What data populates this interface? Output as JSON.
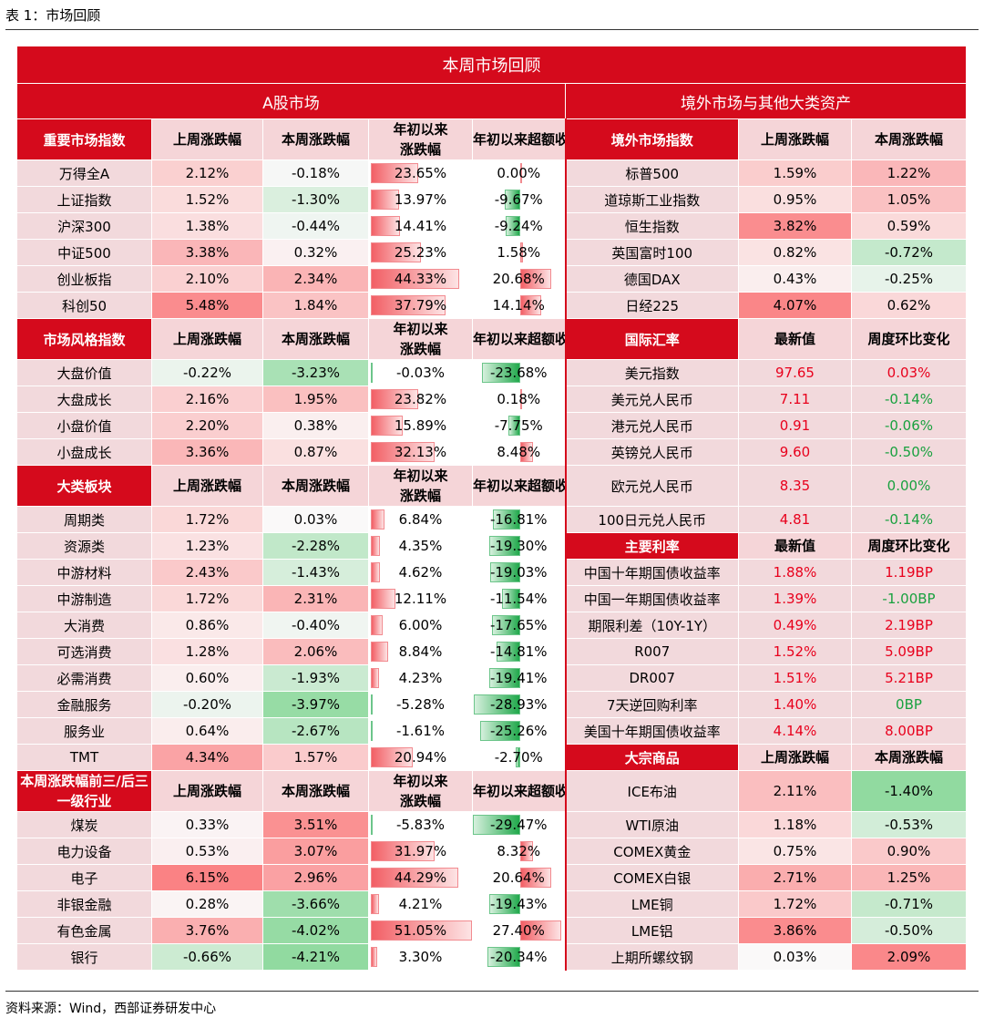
{
  "caption": "表 1：市场回顾",
  "source": "资料来源：Wind，西部证券研发中心",
  "title": "本周市场回顾",
  "left_title": "A股市场",
  "right_title": "境外市场与其他大类资产",
  "hdr": {
    "last_week": "上周涨跌幅",
    "this_week": "本周涨跌幅",
    "ytd": "年初以来涨跌幅",
    "excess": "年初以来超额收益",
    "latest": "最新值",
    "wow": "周度环比变化"
  },
  "left_sections": [
    {
      "name": "重要市场指数",
      "rows": [
        {
          "label": "万得全A",
          "last": "2.12%",
          "this": "-0.18%",
          "ytd": "23.65%",
          "ex": "0.00%"
        },
        {
          "label": "上证指数",
          "last": "1.52%",
          "this": "-1.30%",
          "ytd": "13.97%",
          "ex": "-9.67%"
        },
        {
          "label": "沪深300",
          "last": "1.38%",
          "this": "-0.44%",
          "ytd": "14.41%",
          "ex": "-9.24%"
        },
        {
          "label": "中证500",
          "last": "3.38%",
          "this": "0.32%",
          "ytd": "25.23%",
          "ex": "1.58%"
        },
        {
          "label": "创业板指",
          "last": "2.10%",
          "this": "2.34%",
          "ytd": "44.33%",
          "ex": "20.68%"
        },
        {
          "label": "科创50",
          "last": "5.48%",
          "this": "1.84%",
          "ytd": "37.79%",
          "ex": "14.14%"
        }
      ]
    },
    {
      "name": "市场风格指数",
      "rows": [
        {
          "label": "大盘价值",
          "last": "-0.22%",
          "this": "-3.23%",
          "ytd": "-0.03%",
          "ex": "-23.68%"
        },
        {
          "label": "大盘成长",
          "last": "2.16%",
          "this": "1.95%",
          "ytd": "23.82%",
          "ex": "0.18%"
        },
        {
          "label": "小盘价值",
          "last": "2.20%",
          "this": "0.38%",
          "ytd": "15.89%",
          "ex": "-7.75%"
        },
        {
          "label": "小盘成长",
          "last": "3.36%",
          "this": "0.87%",
          "ytd": "32.13%",
          "ex": "8.48%"
        }
      ]
    },
    {
      "name": "大类板块",
      "rows": [
        {
          "label": "周期类",
          "last": "1.72%",
          "this": "0.03%",
          "ytd": "6.84%",
          "ex": "-16.81%"
        },
        {
          "label": "资源类",
          "last": "1.23%",
          "this": "-2.28%",
          "ytd": "4.35%",
          "ex": "-19.30%"
        },
        {
          "label": "中游材料",
          "last": "2.43%",
          "this": "-1.43%",
          "ytd": "4.62%",
          "ex": "-19.03%"
        },
        {
          "label": "中游制造",
          "last": "1.72%",
          "this": "2.31%",
          "ytd": "12.11%",
          "ex": "-11.54%"
        },
        {
          "label": "大消费",
          "last": "0.86%",
          "this": "-0.40%",
          "ytd": "6.00%",
          "ex": "-17.65%"
        },
        {
          "label": "可选消费",
          "last": "1.28%",
          "this": "2.06%",
          "ytd": "8.84%",
          "ex": "-14.81%"
        },
        {
          "label": "必需消费",
          "last": "0.60%",
          "this": "-1.93%",
          "ytd": "4.23%",
          "ex": "-19.41%"
        },
        {
          "label": "金融服务",
          "last": "-0.20%",
          "this": "-3.97%",
          "ytd": "-5.28%",
          "ex": "-28.93%"
        },
        {
          "label": "服务业",
          "last": "0.64%",
          "this": "-2.67%",
          "ytd": "-1.61%",
          "ex": "-25.26%"
        },
        {
          "label": "TMT",
          "last": "4.34%",
          "this": "1.57%",
          "ytd": "20.94%",
          "ex": "-2.70%"
        }
      ]
    },
    {
      "name": "本周涨跌幅前三/后三一级行业",
      "rows": [
        {
          "label": "煤炭",
          "last": "0.33%",
          "this": "3.51%",
          "ytd": "-5.83%",
          "ex": "-29.47%"
        },
        {
          "label": "电力设备",
          "last": "0.53%",
          "this": "3.07%",
          "ytd": "31.97%",
          "ex": "8.32%"
        },
        {
          "label": "电子",
          "last": "6.15%",
          "this": "2.96%",
          "ytd": "44.29%",
          "ex": "20.64%"
        },
        {
          "label": "非银金融",
          "last": "0.28%",
          "this": "-3.66%",
          "ytd": "4.21%",
          "ex": "-19.43%"
        },
        {
          "label": "有色金属",
          "last": "3.76%",
          "this": "-4.02%",
          "ytd": "51.05%",
          "ex": "27.40%"
        },
        {
          "label": "银行",
          "last": "-0.66%",
          "this": "-4.21%",
          "ytd": "3.30%",
          "ex": "-20.34%"
        }
      ]
    }
  ],
  "right_sections": [
    {
      "name": "境外市场指数",
      "h1": "上周涨跌幅",
      "h2": "本周涨跌幅",
      "kind": "pct",
      "rows": [
        {
          "label": "标普500",
          "a": "1.59%",
          "b": "1.22%"
        },
        {
          "label": "道琼斯工业指数",
          "a": "0.95%",
          "b": "1.05%"
        },
        {
          "label": "恒生指数",
          "a": "3.82%",
          "b": "0.59%"
        },
        {
          "label": "英国富时100",
          "a": "0.82%",
          "b": "-0.72%"
        },
        {
          "label": "德国DAX",
          "a": "0.43%",
          "b": "-0.25%"
        },
        {
          "label": "日经225",
          "a": "4.07%",
          "b": "0.62%"
        }
      ]
    },
    {
      "name": "国际汇率",
      "h1": "最新值",
      "h2": "周度环比变化",
      "kind": "fx",
      "rows": [
        {
          "label": "美元指数",
          "a": "97.65",
          "b": "0.03%"
        },
        {
          "label": "美元兑人民币",
          "a": "7.11",
          "b": "-0.14%"
        },
        {
          "label": "港元兑人民币",
          "a": "0.91",
          "b": "-0.06%"
        },
        {
          "label": "英镑兑人民币",
          "a": "9.60",
          "b": "-0.50%"
        },
        {
          "label": "欧元兑人民币",
          "a": "8.35",
          "b": "0.00%"
        },
        {
          "label": "100日元兑人民币",
          "a": "4.81",
          "b": "-0.14%"
        }
      ]
    },
    {
      "name": "主要利率",
      "h1": "最新值",
      "h2": "周度环比变化",
      "kind": "rate",
      "rows": [
        {
          "label": "中国十年期国债收益率",
          "a": "1.88%",
          "b": "1.19BP"
        },
        {
          "label": "中国一年期国债收益率",
          "a": "1.39%",
          "b": "-1.00BP"
        },
        {
          "label": "期限利差（10Y-1Y）",
          "a": "0.49%",
          "b": "2.19BP"
        },
        {
          "label": "R007",
          "a": "1.52%",
          "b": "5.09BP"
        },
        {
          "label": "DR007",
          "a": "1.51%",
          "b": "5.21BP"
        },
        {
          "label": "7天逆回购利率",
          "a": "1.40%",
          "b": "0BP"
        },
        {
          "label": "美国十年期国债收益率",
          "a": "4.14%",
          "b": "8.00BP"
        }
      ]
    },
    {
      "name": "大宗商品",
      "h1": "上周涨跌幅",
      "h2": "本周涨跌幅",
      "kind": "pct",
      "rows": [
        {
          "label": "ICE布油",
          "a": "2.11%",
          "b": "-1.40%"
        },
        {
          "label": "WTI原油",
          "a": "1.18%",
          "b": "-0.53%"
        },
        {
          "label": "COMEX黄金",
          "a": "0.75%",
          "b": "0.90%"
        },
        {
          "label": "COMEX白银",
          "a": "2.71%",
          "b": "1.25%"
        },
        {
          "label": "LME铜",
          "a": "1.72%",
          "b": "-0.71%"
        },
        {
          "label": "LME铝",
          "a": "3.86%",
          "b": "-0.50%"
        },
        {
          "label": "上期所螺纹钢",
          "a": "0.03%",
          "b": "2.09%"
        }
      ]
    }
  ]
}
